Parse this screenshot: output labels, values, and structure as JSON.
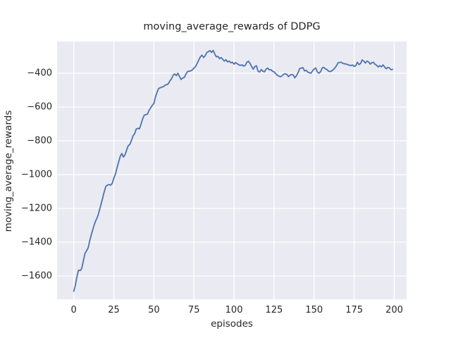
{
  "chart_data": {
    "type": "line",
    "title": "moving_average_rewards of DDPG",
    "xlabel": "episodes",
    "ylabel": "moving_average_rewards",
    "xlim": [
      -10.4,
      207.7
    ],
    "ylim": [
      -1737.5,
      -212.5
    ],
    "grid": true,
    "legend": "none",
    "x_tick_values": [
      0,
      25,
      50,
      75,
      100,
      125,
      150,
      175,
      200
    ],
    "x_tick_labels": [
      "0",
      "25",
      "50",
      "75",
      "100",
      "125",
      "150",
      "175",
      "200"
    ],
    "y_tick_values": [
      -400,
      -600,
      -800,
      -1000,
      -1200,
      -1400,
      -1600
    ],
    "y_tick_labels": [
      "−400",
      "−600",
      "−800",
      "−1000",
      "−1200",
      "−1400",
      "−1600"
    ],
    "series": [
      {
        "name": "moving_average_rewards",
        "x_start": 0,
        "x_step": 1,
        "values": [
          -1690,
          -1655,
          -1604,
          -1565,
          -1568,
          -1555,
          -1510,
          -1467,
          -1450,
          -1433,
          -1390,
          -1354,
          -1322,
          -1290,
          -1267,
          -1246,
          -1212,
          -1176,
          -1140,
          -1102,
          -1070,
          -1062,
          -1059,
          -1062,
          -1052,
          -1021,
          -998,
          -960,
          -925,
          -892,
          -875,
          -896,
          -882,
          -855,
          -829,
          -821,
          -798,
          -770,
          -758,
          -730,
          -726,
          -729,
          -700,
          -670,
          -648,
          -645,
          -642,
          -620,
          -604,
          -590,
          -579,
          -540,
          -512,
          -490,
          -486,
          -482,
          -479,
          -471,
          -468,
          -462,
          -445,
          -433,
          -412,
          -404,
          -414,
          -400,
          -420,
          -437,
          -428,
          -425,
          -405,
          -390,
          -388,
          -386,
          -380,
          -370,
          -360,
          -342,
          -322,
          -303,
          -293,
          -307,
          -297,
          -278,
          -272,
          -266,
          -277,
          -265,
          -286,
          -303,
          -300,
          -314,
          -307,
          -318,
          -328,
          -320,
          -333,
          -328,
          -338,
          -335,
          -346,
          -337,
          -344,
          -350,
          -354,
          -350,
          -358,
          -354,
          -335,
          -329,
          -342,
          -360,
          -376,
          -360,
          -356,
          -388,
          -393,
          -378,
          -388,
          -392,
          -376,
          -369,
          -380,
          -379,
          -388,
          -392,
          -402,
          -412,
          -417,
          -421,
          -415,
          -406,
          -403,
          -407,
          -420,
          -411,
          -407,
          -411,
          -427,
          -414,
          -396,
          -372,
          -369,
          -367,
          -386,
          -383,
          -393,
          -397,
          -400,
          -386,
          -375,
          -369,
          -392,
          -400,
          -391,
          -370,
          -365,
          -374,
          -378,
          -388,
          -390,
          -386,
          -378,
          -368,
          -355,
          -338,
          -336,
          -335,
          -342,
          -344,
          -346,
          -349,
          -352,
          -355,
          -351,
          -360,
          -355,
          -335,
          -349,
          -342,
          -321,
          -329,
          -340,
          -328,
          -333,
          -346,
          -338,
          -335,
          -347,
          -353,
          -363,
          -355,
          -362,
          -351,
          -363,
          -374,
          -365,
          -369,
          -379,
          -377
        ]
      }
    ],
    "colors": {
      "line": "#4c72b0",
      "plot_background": "#eaeaf2",
      "figure_background": "#ffffff",
      "grid": "#ffffff",
      "text": "#262626"
    }
  }
}
